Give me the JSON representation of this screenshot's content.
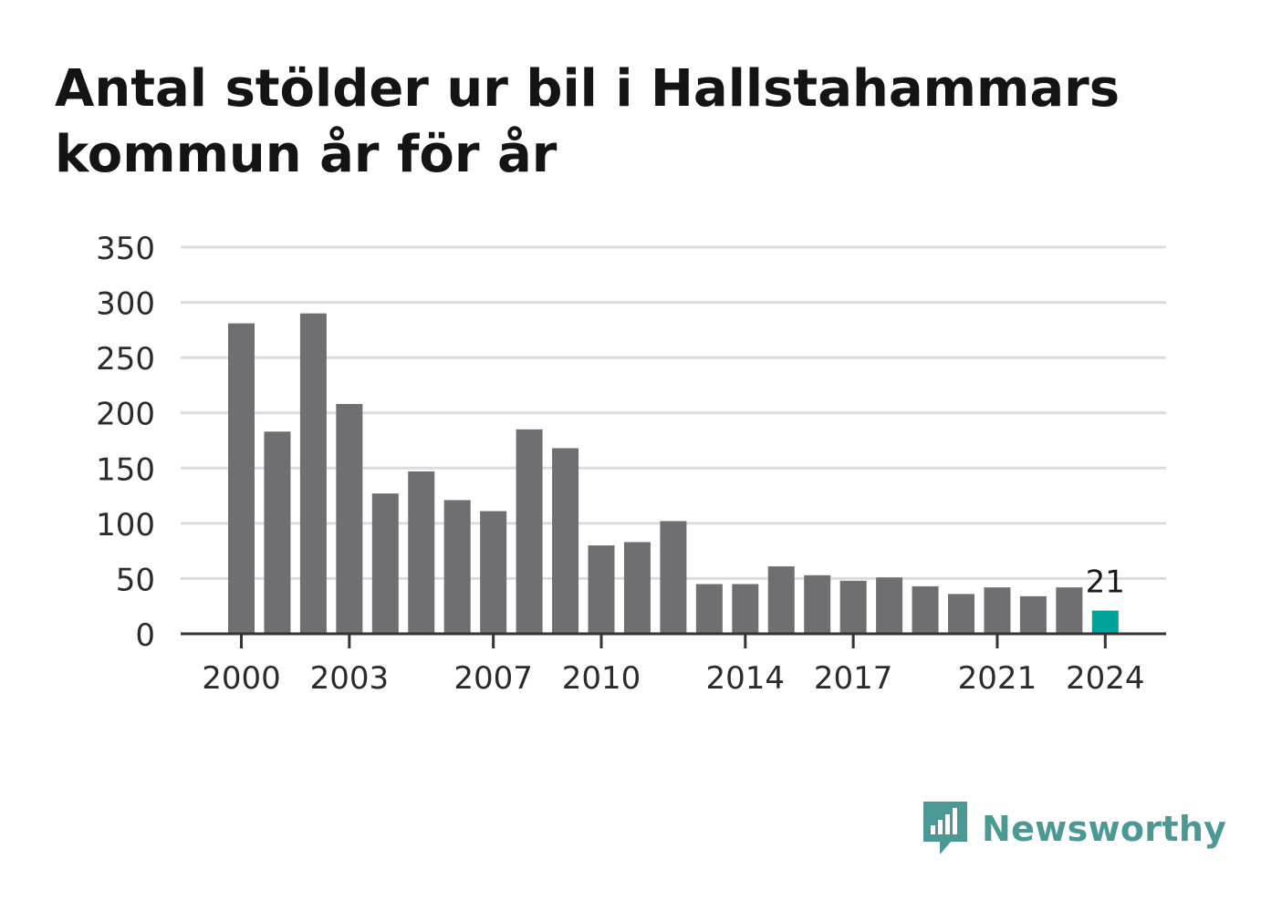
{
  "header": {
    "title": "Antal stölder ur bil i Hallstahammars kommun år för år"
  },
  "chart_data": {
    "type": "bar",
    "title": "Antal stölder ur bil i Hallstahammars kommun år för år",
    "xlabel": "",
    "ylabel": "",
    "categories": [
      "2000",
      "2001",
      "2002",
      "2003",
      "2004",
      "2005",
      "2006",
      "2007",
      "2008",
      "2009",
      "2010",
      "2011",
      "2012",
      "2013",
      "2014",
      "2015",
      "2016",
      "2017",
      "2018",
      "2019",
      "2020",
      "2021",
      "2022",
      "2023",
      "2024"
    ],
    "values": [
      281,
      183,
      290,
      208,
      127,
      147,
      121,
      111,
      185,
      168,
      80,
      83,
      102,
      45,
      45,
      61,
      53,
      48,
      51,
      43,
      36,
      42,
      34,
      42,
      21
    ],
    "x_tick_labels": [
      "2000",
      "2003",
      "2007",
      "2010",
      "2014",
      "2017",
      "2021",
      "2024"
    ],
    "ylim": [
      0,
      350
    ],
    "y_ticks": [
      0,
      50,
      100,
      150,
      200,
      250,
      300,
      350
    ],
    "grid": true,
    "highlight": {
      "category": "2024",
      "label": "21"
    },
    "colors": {
      "bar": "#6f6e73",
      "highlight": "#00a39a",
      "grid": "#dcdcdc",
      "axis": "#333333",
      "text": "#2b2b2b"
    }
  },
  "brand": {
    "name": "Newsworthy",
    "icon": "newsworthy-logo-icon",
    "color": "#4a9995"
  }
}
